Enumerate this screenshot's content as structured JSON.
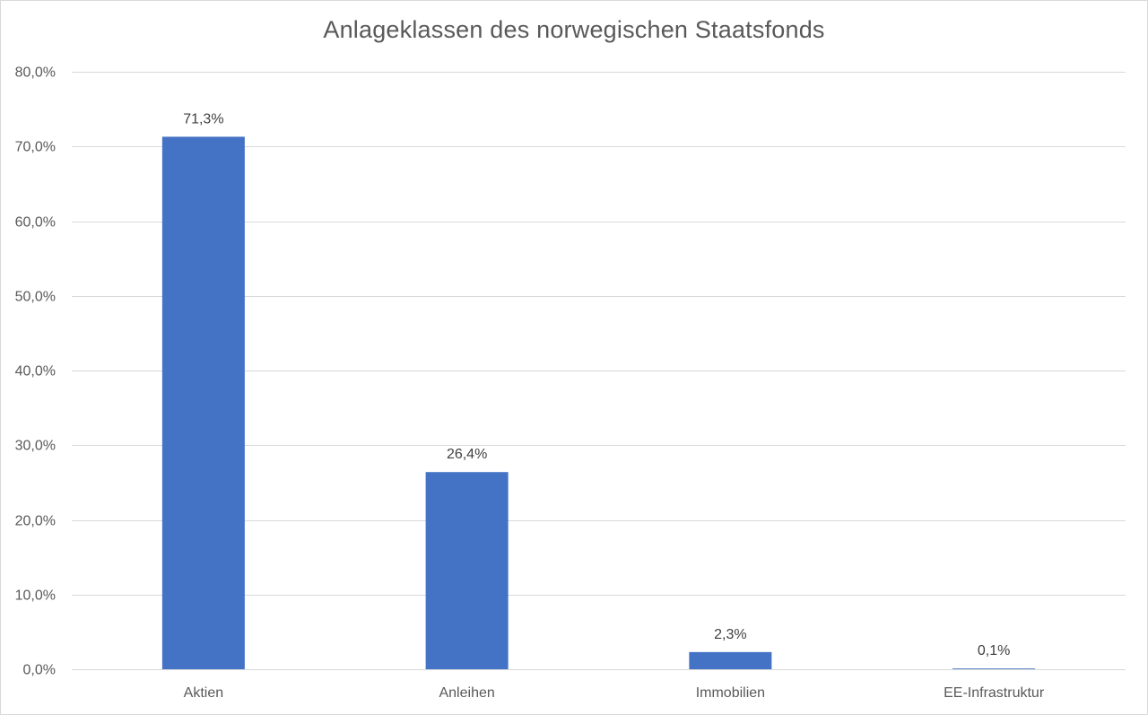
{
  "chart_data": {
    "type": "bar",
    "title": "Anlageklassen des norwegischen Staatsfonds",
    "xlabel": "",
    "ylabel": "",
    "categories": [
      "Aktien",
      "Anleihen",
      "Immobilien",
      "EE-Infrastruktur"
    ],
    "values": [
      71.3,
      26.4,
      2.3,
      0.1
    ],
    "data_labels": [
      "71,3%",
      "26,4%",
      "2,3%",
      "0,1%"
    ],
    "ylim": [
      0,
      80
    ],
    "y_ticks": [
      0,
      10,
      20,
      30,
      40,
      50,
      60,
      70,
      80
    ],
    "y_tick_labels": [
      "0,0%",
      "10,0%",
      "20,0%",
      "30,0%",
      "40,0%",
      "50,0%",
      "60,0%",
      "70,0%",
      "80,0%"
    ],
    "grid": true,
    "legend": "none",
    "bar_color": "#4472C4",
    "grid_color": "#D9D9D9",
    "text_color": "#595959"
  }
}
